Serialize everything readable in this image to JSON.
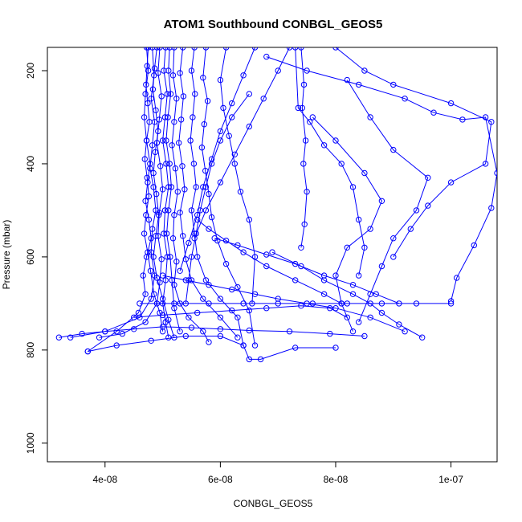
{
  "chart_data": {
    "type": "line",
    "title": "ATOM1 Southbound CONBGL_GEOS5",
    "xlabel": "CONBGL_GEOS5",
    "ylabel": "Pressure (mbar)",
    "xlim": [
      3e-08,
      1.08e-07
    ],
    "ylim": [
      1040,
      150
    ],
    "y_reversed": true,
    "x_ticks": [
      4e-08,
      6e-08,
      8e-08,
      1e-07
    ],
    "x_tick_labels": [
      "4e-08",
      "6e-08",
      "8e-08",
      "1e-07"
    ],
    "y_ticks": [
      200,
      400,
      600,
      800,
      1000
    ],
    "y_tick_labels": [
      "200",
      "400",
      "600",
      "800",
      "1000"
    ],
    "grid": false,
    "legend": "none",
    "series_color": "#0000ff",
    "series": [
      {
        "x": [
          4.72e-08,
          4.75e-08,
          4.7e-08,
          4.68e-08,
          4.72e-08,
          4.78e-08,
          4.74e-08,
          4.7e-08,
          4.76e-08,
          4.8e-08,
          4.72e-08,
          4.66e-08,
          4.7e-08,
          4.58e-08,
          4.2e-08,
          3.7e-08
        ],
        "y": [
          150,
          200,
          250,
          300,
          350,
          400,
          440,
          480,
          520,
          560,
          600,
          640,
          680,
          720,
          760,
          803
        ]
      },
      {
        "x": [
          4.82e-08,
          4.85e-08,
          4.8e-08,
          4.86e-08,
          4.82e-08,
          4.78e-08,
          4.84e-08,
          4.88e-08,
          4.82e-08,
          4.8e-08,
          4.86e-08,
          4.8e-08,
          4.6e-08,
          4e-08,
          3.4e-08
        ],
        "y": [
          150,
          210,
          260,
          310,
          360,
          410,
          450,
          500,
          540,
          590,
          640,
          690,
          730,
          760,
          773
        ]
      },
      {
        "x": [
          4.95e-08,
          4.92e-08,
          4.98e-08,
          4.94e-08,
          4.9e-08,
          4.96e-08,
          5e-08,
          4.94e-08,
          4.92e-08,
          4.98e-08,
          4.95e-08,
          4.9e-08,
          4.7e-08,
          4.3e-08,
          3.9e-08
        ],
        "y": [
          150,
          205,
          255,
          305,
          355,
          405,
          455,
          505,
          555,
          605,
          655,
          700,
          740,
          765,
          773
        ]
      },
      {
        "x": [
          5.05e-08,
          5.02e-08,
          5.08e-08,
          5.04e-08,
          5e-08,
          5.06e-08,
          5.1e-08,
          5.04e-08,
          5.02e-08,
          5.08e-08,
          5.05e-08,
          5e-08,
          5.05e-08,
          5.1e-08
        ],
        "y": [
          150,
          200,
          250,
          300,
          350,
          400,
          450,
          500,
          550,
          600,
          650,
          700,
          740,
          773
        ]
      },
      {
        "x": [
          5.2e-08,
          5.18e-08,
          5.24e-08,
          5.2e-08,
          5.16e-08,
          5.22e-08,
          5.26e-08,
          5.2e-08,
          5.18e-08,
          5.24e-08,
          5.2e-08,
          5.3e-08,
          5.45e-08,
          5.7e-08,
          5.8e-08
        ],
        "y": [
          150,
          210,
          260,
          310,
          360,
          410,
          460,
          510,
          560,
          610,
          660,
          700,
          730,
          760,
          783
        ]
      },
      {
        "x": [
          5.35e-08,
          5.3e-08,
          5.36e-08,
          5.32e-08,
          5.28e-08,
          5.34e-08,
          5.38e-08,
          5.3e-08,
          5.35e-08,
          5.4e-08,
          5.5e-08,
          5.7e-08,
          6e-08,
          6.3e-08
        ],
        "y": [
          150,
          205,
          255,
          305,
          355,
          405,
          455,
          505,
          555,
          605,
          650,
          690,
          730,
          773
        ]
      },
      {
        "x": [
          5.55e-08,
          5.5e-08,
          5.56e-08,
          5.52e-08,
          5.48e-08,
          5.54e-08,
          5.58e-08,
          5.5e-08,
          5.55e-08,
          5.6e-08,
          5.75e-08,
          6e-08,
          6.3e-08,
          6.4e-08
        ],
        "y": [
          150,
          200,
          250,
          300,
          350,
          400,
          450,
          500,
          550,
          600,
          650,
          690,
          730,
          790
        ]
      },
      {
        "x": [
          5.75e-08,
          5.7e-08,
          5.78e-08,
          5.72e-08,
          5.68e-08,
          5.74e-08,
          5.8e-08,
          5.85e-08,
          5.95e-08,
          6.1e-08,
          6.3e-08,
          6.5e-08,
          6.6e-08
        ],
        "y": [
          150,
          215,
          265,
          315,
          365,
          415,
          465,
          515,
          565,
          615,
          665,
          715,
          790
        ]
      },
      {
        "x": [
          6.1e-08,
          6e-08,
          6.05e-08,
          6.15e-08,
          6.25e-08,
          6.35e-08,
          6.5e-08,
          6.6e-08,
          6.55e-08
        ],
        "y": [
          150,
          220,
          280,
          340,
          400,
          460,
          520,
          600,
          700
        ]
      },
      {
        "x": [
          6.6e-08,
          6.4e-08,
          6.2e-08,
          6e-08,
          5.85e-08,
          5.7e-08,
          5.6e-08,
          5.45e-08,
          5.3e-08
        ],
        "y": [
          150,
          210,
          270,
          330,
          390,
          450,
          510,
          570,
          630
        ]
      },
      {
        "x": [
          7.2e-08,
          7e-08,
          6.75e-08,
          6.5e-08,
          6.25e-08,
          6e-08,
          5.75e-08,
          5.55e-08
        ],
        "y": [
          150,
          200,
          260,
          320,
          380,
          440,
          500,
          560
        ]
      },
      {
        "x": [
          7.4e-08,
          7.45e-08,
          7.42e-08,
          7.48e-08,
          7.44e-08,
          7.5e-08,
          7.46e-08,
          7.4e-08
        ],
        "y": [
          150,
          230,
          280,
          350,
          400,
          460,
          530,
          580
        ]
      },
      {
        "x": [
          7.3e-08,
          7.35e-08,
          7.55e-08,
          7.8e-08,
          8.1e-08,
          8.3e-08,
          8.4e-08,
          8.5e-08,
          8.4e-08
        ],
        "y": [
          150,
          280,
          310,
          360,
          400,
          450,
          520,
          580,
          640
        ]
      },
      {
        "x": [
          8e-08,
          8.5e-08,
          9e-08,
          1e-07,
          1.07e-07,
          1.06e-07,
          1e-07,
          9.6e-08,
          9.3e-08,
          9e-08
        ],
        "y": [
          150,
          200,
          230,
          270,
          310,
          400,
          440,
          490,
          540,
          600
        ]
      },
      {
        "x": [
          6.8e-08,
          7.5e-08,
          8.4e-08,
          9.2e-08,
          9.7e-08,
          1.02e-07,
          1.06e-07,
          1.08e-07,
          1.07e-07,
          1.04e-07,
          1.01e-07,
          1e-07
        ],
        "y": [
          170,
          200,
          230,
          260,
          290,
          305,
          300,
          420,
          495,
          575,
          645,
          695
        ]
      },
      {
        "x": [
          8.2e-08,
          8.6e-08,
          9e-08,
          9.6e-08,
          9.4e-08,
          9e-08,
          8.8e-08,
          8.6e-08,
          8.4e-08
        ],
        "y": [
          220,
          300,
          370,
          430,
          500,
          560,
          620,
          680,
          740
        ]
      },
      {
        "x": [
          7.6e-08,
          8e-08,
          8.5e-08,
          8.8e-08,
          8.6e-08,
          8.2e-08,
          8e-08,
          8.1e-08,
          8.3e-08
        ],
        "y": [
          300,
          350,
          420,
          480,
          540,
          580,
          640,
          700,
          760
        ]
      },
      {
        "x": [
          6.9e-08,
          7.4e-08,
          7.8e-08,
          8.3e-08,
          8.6e-08,
          8.8e-08,
          9.1e-08,
          9.5e-08
        ],
        "y": [
          590,
          620,
          650,
          680,
          700,
          720,
          745,
          773
        ]
      },
      {
        "x": [
          4.6e-08,
          5.2e-08,
          5.8e-08,
          6.4e-08,
          7e-08,
          7.6e-08,
          8.2e-08,
          8.8e-08,
          9.4e-08,
          1e-07
        ],
        "y": [
          700,
          700,
          700,
          700,
          700,
          700,
          700,
          700,
          700,
          700
        ]
      },
      {
        "x": [
          3.2e-08,
          3.6e-08,
          4e-08,
          4.5e-08,
          5e-08,
          5.5e-08,
          6e-08,
          6.5e-08,
          7.2e-08,
          7.9e-08,
          8.5e-08
        ],
        "y": [
          773,
          765,
          760,
          755,
          750,
          752,
          755,
          758,
          760,
          765,
          770
        ]
      },
      {
        "x": [
          3.7e-08,
          4.2e-08,
          4.8e-08,
          5.4e-08,
          6e-08,
          6.4e-08,
          6.5e-08,
          6.7e-08,
          7.3e-08,
          8e-08
        ],
        "y": [
          803,
          790,
          780,
          770,
          770,
          790,
          820,
          820,
          795,
          795
        ]
      },
      {
        "x": [
          4.5e-08,
          5e-08,
          5.6e-08,
          6.2e-08,
          6.8e-08,
          7.4e-08,
          7.9e-08,
          8.2e-08
        ],
        "y": [
          730,
          725,
          720,
          715,
          710,
          705,
          710,
          730
        ]
      },
      {
        "x": [
          5e-08,
          5.4e-08,
          5.8e-08,
          6.2e-08,
          6.6e-08,
          7e-08,
          7.5e-08,
          8e-08,
          8.6e-08,
          9.2e-08
        ],
        "y": [
          640,
          650,
          660,
          670,
          680,
          690,
          700,
          710,
          730,
          760
        ]
      },
      {
        "x": [
          4.75e-08,
          4.73e-08,
          4.71e-08,
          4.74e-08,
          4.77e-08,
          4.72e-08,
          4.69e-08,
          4.73e-08,
          4.76e-08,
          4.71e-08,
          4.68e-08,
          4.74e-08,
          4.79e-08,
          4.85e-08,
          4.95e-08,
          5e-08
        ],
        "y": [
          150,
          190,
          230,
          270,
          310,
          350,
          390,
          430,
          470,
          510,
          550,
          590,
          630,
          680,
          720,
          760
        ]
      },
      {
        "x": [
          4.9e-08,
          4.86e-08,
          4.83e-08,
          4.88e-08,
          4.92e-08,
          4.87e-08,
          4.84e-08,
          4.89e-08,
          4.93e-08,
          4.88e-08,
          4.84e-08,
          4.9e-08,
          5e-08,
          5.1e-08,
          5.2e-08
        ],
        "y": [
          150,
          195,
          240,
          285,
          330,
          375,
          420,
          465,
          510,
          555,
          600,
          645,
          690,
          735,
          773
        ]
      },
      {
        "x": [
          5.12e-08,
          5.1e-08,
          5.14e-08,
          5.09e-08,
          5.06e-08,
          5.12e-08,
          5.15e-08,
          5.1e-08,
          5.07e-08,
          5.13e-08,
          5.16e-08,
          5.2e-08,
          5.3e-08
        ],
        "y": [
          150,
          200,
          250,
          300,
          350,
          400,
          450,
          500,
          550,
          600,
          650,
          710,
          760
        ]
      },
      {
        "x": [
          6.5e-08,
          6.2e-08,
          6e-08,
          5.85e-08,
          5.75e-08,
          5.65e-08,
          5.58e-08,
          5.5e-08,
          5.45e-08,
          5.4e-08
        ],
        "y": [
          250,
          300,
          350,
          400,
          450,
          500,
          550,
          600,
          650,
          700
        ]
      },
      {
        "x": [
          5.6e-08,
          5.8e-08,
          6.1e-08,
          6.4e-08,
          6.8e-08,
          7.3e-08,
          7.8e-08,
          8.1e-08
        ],
        "y": [
          520,
          540,
          565,
          590,
          620,
          650,
          680,
          700
        ]
      },
      {
        "x": [
          5.9e-08,
          6.3e-08,
          6.8e-08,
          7.3e-08,
          7.8e-08,
          8.3e-08,
          8.7e-08,
          9.1e-08
        ],
        "y": [
          560,
          575,
          595,
          615,
          640,
          660,
          680,
          700
        ]
      }
    ]
  }
}
